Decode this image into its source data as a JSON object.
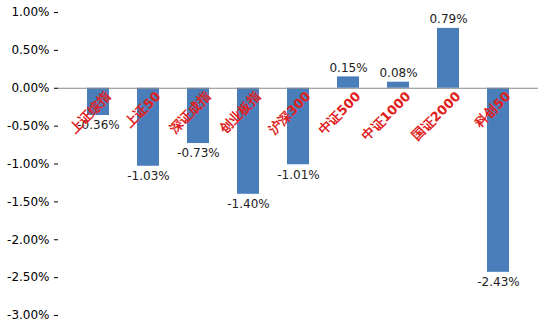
{
  "chart_data": {
    "type": "bar",
    "categories": [
      "上证综指",
      "上证50",
      "深证成指",
      "创业板指",
      "沪深300",
      "中证500",
      "中证1000",
      "国证2000",
      "科创50"
    ],
    "values": [
      -0.36,
      -1.03,
      -0.73,
      -1.4,
      -1.01,
      0.15,
      0.08,
      0.79,
      -2.43
    ],
    "value_labels": [
      "-0.36%",
      "-1.03%",
      "-0.73%",
      "-1.40%",
      "-1.01%",
      "0.15%",
      "0.08%",
      "0.79%",
      "-2.43%"
    ],
    "color": "#4a7ebb",
    "ylim": [
      -3,
      1
    ],
    "yticks": [
      {
        "value": -3,
        "label": "-3.00%"
      },
      {
        "value": -2.5,
        "label": "-2.50%"
      },
      {
        "value": -2,
        "label": "-2.00%"
      },
      {
        "value": -1.5,
        "label": "-1.50%"
      },
      {
        "value": -1,
        "label": "-1.00%"
      },
      {
        "value": -0.5,
        "label": "-0.50%"
      },
      {
        "value": 0,
        "label": "0.00%"
      },
      {
        "value": 0.5,
        "label": "0.50%"
      },
      {
        "value": 1,
        "label": "1.00%"
      }
    ],
    "grid": false,
    "data_labels": true
  }
}
